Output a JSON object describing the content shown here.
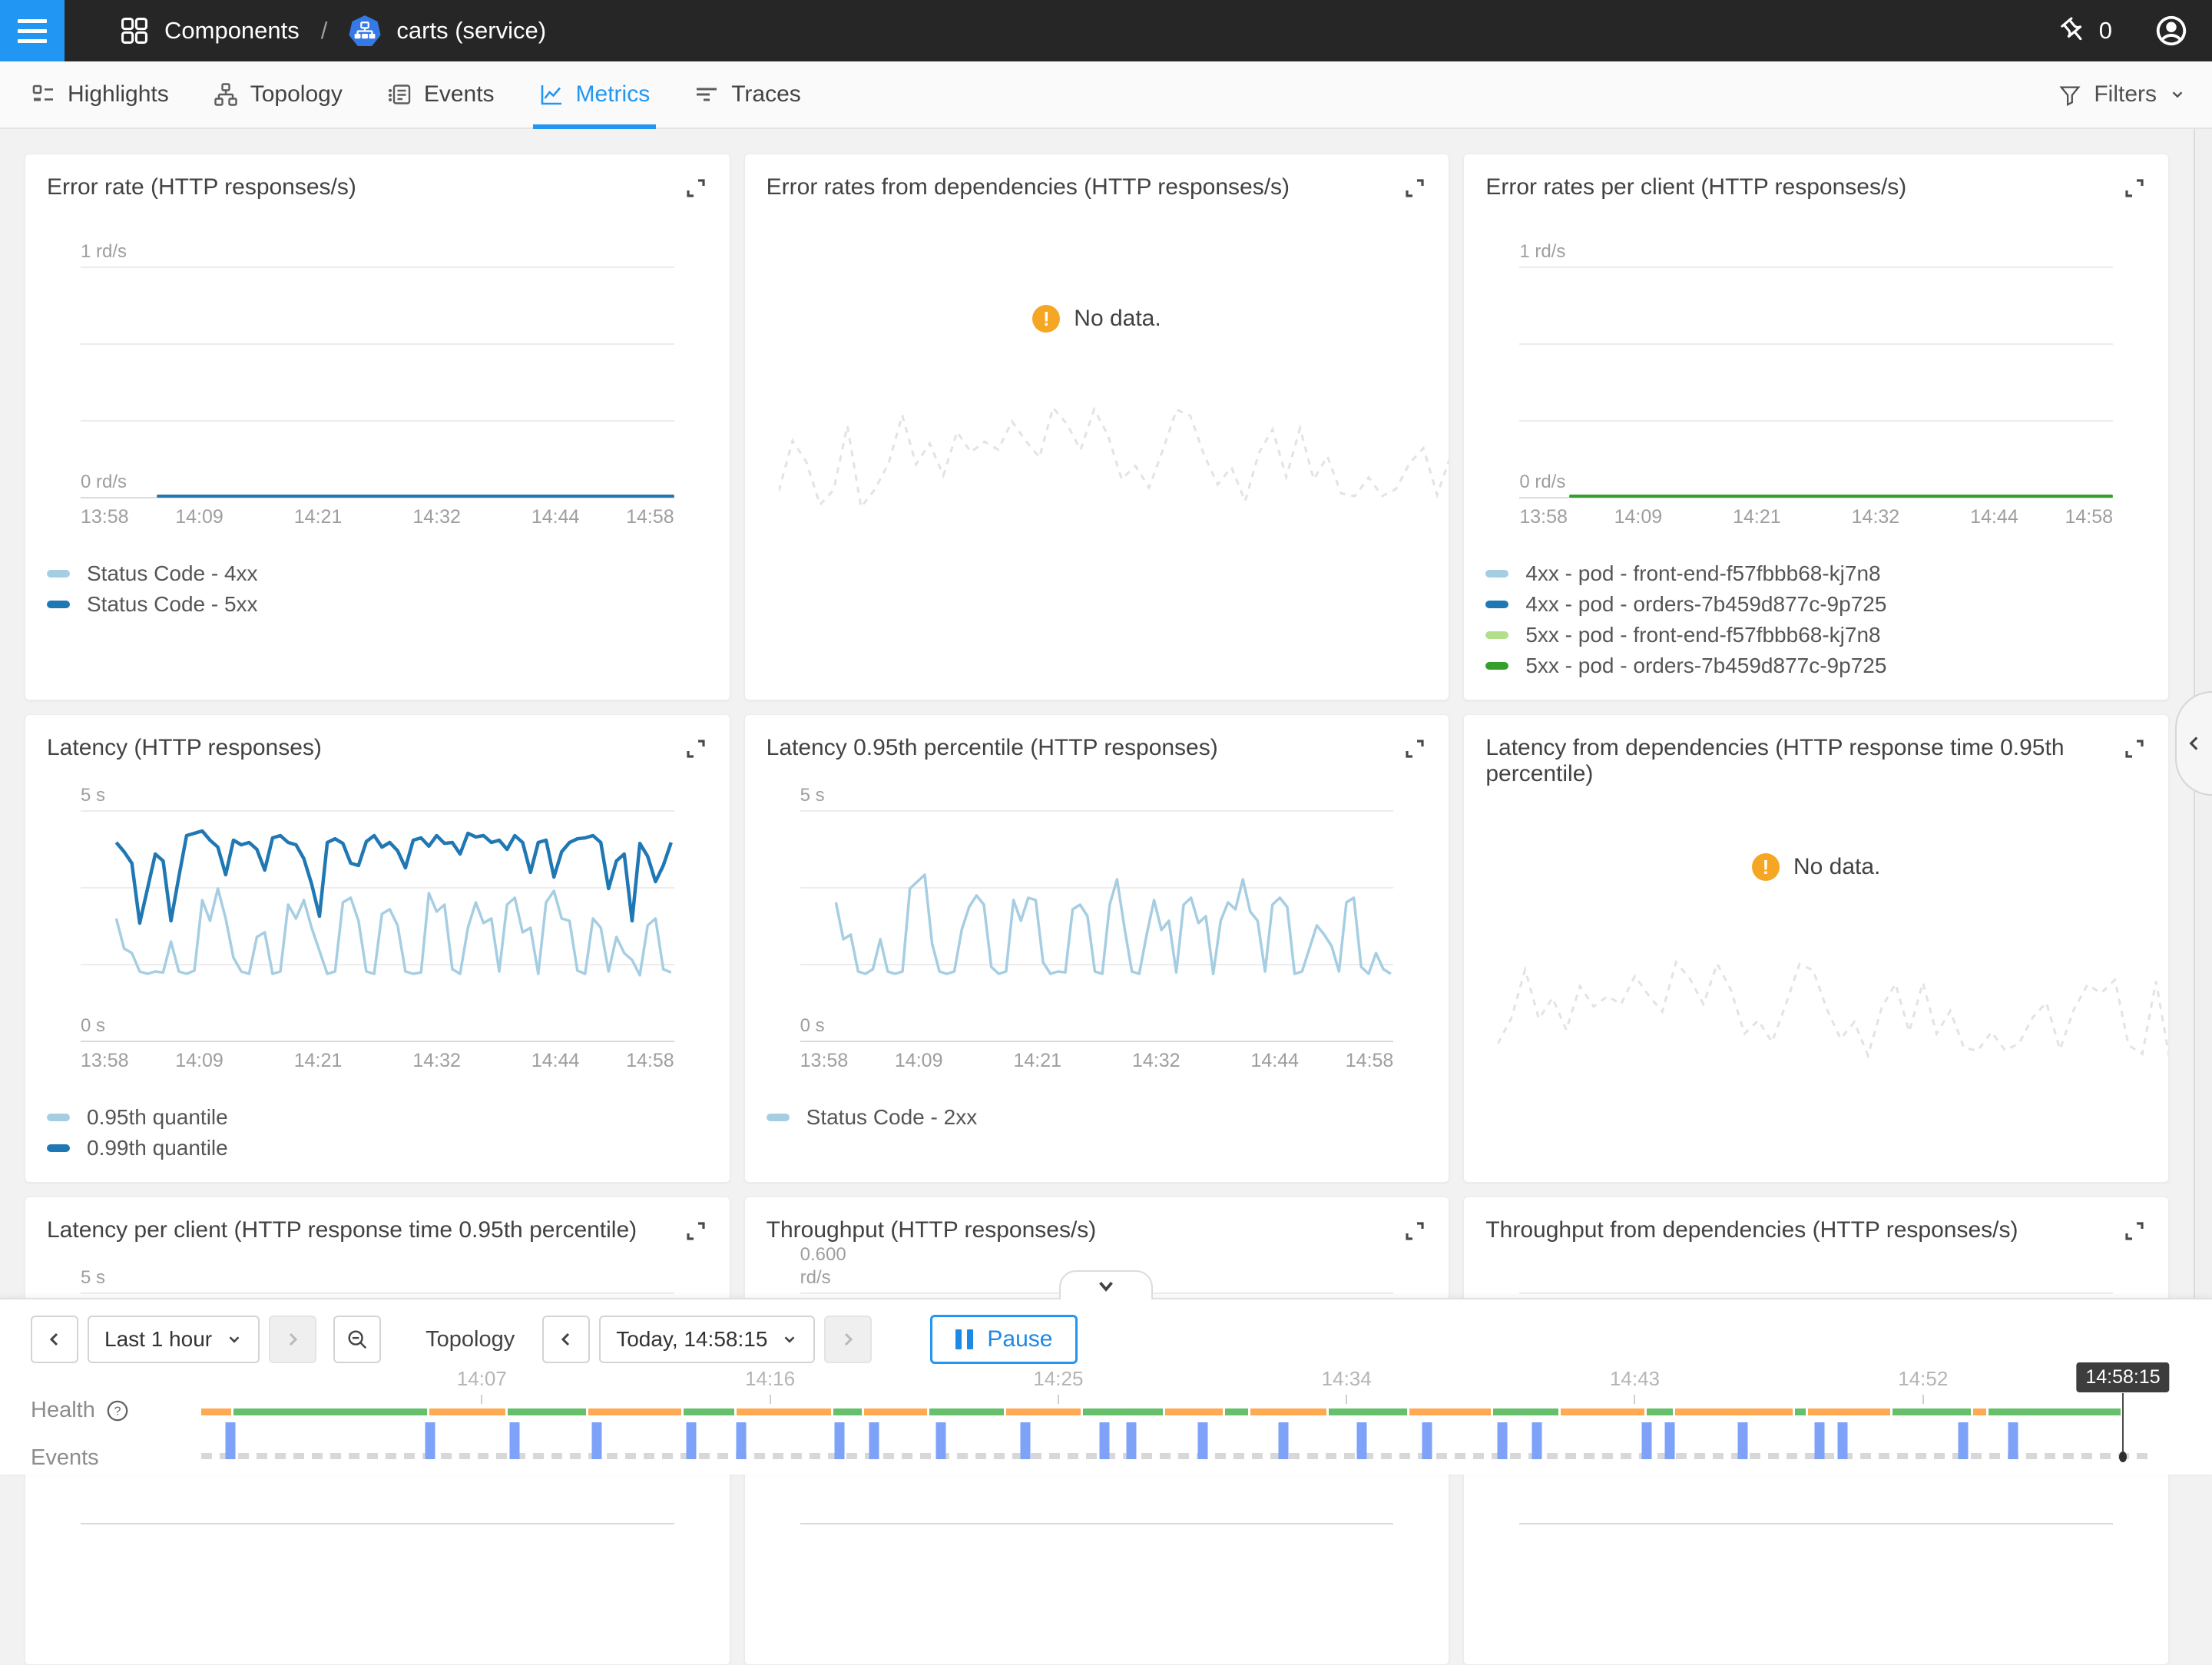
{
  "topbar": {
    "breadcrumb": {
      "section": "Components",
      "separator": "/",
      "entity": "carts (service)"
    },
    "pin_count": "0"
  },
  "tabs": [
    {
      "label": "Highlights"
    },
    {
      "label": "Topology"
    },
    {
      "label": "Events"
    },
    {
      "label": "Metrics",
      "active": true
    },
    {
      "label": "Traces"
    }
  ],
  "filters": {
    "label": "Filters"
  },
  "palette": {
    "accent_blue": "#2196f3",
    "light_blue": "#a6cee3",
    "dark_blue": "#1f78b4",
    "light_green": "#b2df8a",
    "dark_green": "#33a02c",
    "health_green": "#66bf6a",
    "health_orange": "#ffa952",
    "event_blue": "#7da2f7",
    "nodata_orange": "#f5a623"
  },
  "chart_data": [
    {
      "type": "line",
      "title": "Error rate (HTTP responses/s)",
      "y_top": "1 rd/s",
      "y_bottom": "0 rd/s",
      "ylim": [
        0,
        1
      ],
      "x_ticks": [
        "13:58",
        "14:09",
        "14:21",
        "14:32",
        "14:44",
        "14:58"
      ],
      "flat": {
        "value": 0,
        "color": "#1f78b4",
        "start_pct": 11.5
      },
      "legend": [
        {
          "label": "Status Code - 4xx",
          "color": "#a6cee3"
        },
        {
          "label": "Status Code - 5xx",
          "color": "#1f78b4"
        }
      ]
    },
    {
      "type": "nodata",
      "title": "Error rates from dependencies (HTTP responses/s)",
      "no_data_label": "No data."
    },
    {
      "type": "line",
      "title": "Error rates per client (HTTP responses/s)",
      "y_top": "1 rd/s",
      "y_bottom": "0 rd/s",
      "ylim": [
        0,
        1
      ],
      "x_ticks": [
        "13:58",
        "14:09",
        "14:21",
        "14:32",
        "14:44",
        "14:58"
      ],
      "flat": {
        "value": 0,
        "color": "#33a02c",
        "start_pct": 7.5
      },
      "legend": [
        {
          "label": "4xx - pod - front-end-f57fbbb68-kj7n8",
          "color": "#a6cee3"
        },
        {
          "label": "4xx - pod - orders-7b459d877c-9p725",
          "color": "#1f78b4"
        },
        {
          "label": "5xx - pod - front-end-f57fbbb68-kj7n8",
          "color": "#b2df8a"
        },
        {
          "label": "5xx - pod - orders-7b459d877c-9p725",
          "color": "#33a02c"
        }
      ]
    },
    {
      "type": "line",
      "title": "Latency (HTTP responses)",
      "y_top": "5 s",
      "y_bottom": "0 s",
      "ylim": [
        0,
        5
      ],
      "x_ticks": [
        "13:58",
        "14:09",
        "14:21",
        "14:32",
        "14:44",
        "14:58"
      ],
      "series": [
        {
          "name": "0.95th quantile",
          "color": "#a6cee3",
          "values": [
            2.65,
            2.0,
            1.9,
            1.5,
            1.45,
            1.5,
            1.48,
            2.15,
            1.5,
            1.45,
            1.52,
            3.05,
            2.6,
            3.3,
            2.65,
            1.8,
            1.5,
            1.45,
            2.25,
            2.35,
            1.45,
            1.5,
            2.95,
            2.65,
            3.05,
            2.45,
            1.95,
            1.45,
            1.5,
            3.0,
            3.1,
            2.6,
            1.5,
            1.45,
            2.75,
            2.85,
            2.5,
            1.5,
            1.45,
            1.48,
            3.2,
            2.8,
            2.95,
            1.55,
            1.45,
            2.45,
            3.0,
            2.55,
            2.65,
            1.5,
            2.95,
            3.1,
            2.35,
            2.45,
            1.45,
            3.0,
            3.25,
            2.65,
            2.6,
            1.52,
            1.45,
            2.65,
            2.45,
            1.5,
            2.25,
            1.9,
            1.75,
            1.42,
            2.5,
            2.65,
            1.55,
            1.48
          ]
        },
        {
          "name": "0.99th quantile",
          "color": "#1f78b4",
          "values": [
            4.3,
            4.1,
            3.85,
            2.55,
            3.3,
            4.05,
            3.9,
            2.6,
            3.55,
            4.45,
            4.5,
            4.55,
            4.35,
            4.2,
            3.6,
            4.35,
            4.25,
            4.3,
            4.15,
            3.7,
            4.4,
            4.45,
            4.3,
            4.25,
            3.95,
            3.4,
            2.7,
            4.3,
            4.38,
            4.28,
            3.85,
            3.8,
            4.32,
            4.45,
            4.2,
            4.3,
            4.12,
            3.75,
            4.35,
            4.4,
            4.22,
            4.45,
            4.28,
            4.3,
            4.05,
            4.5,
            4.42,
            4.45,
            4.3,
            4.35,
            4.15,
            4.45,
            4.3,
            3.65,
            4.3,
            4.35,
            3.55,
            4.1,
            4.3,
            4.38,
            4.4,
            4.45,
            4.3,
            3.3,
            3.9,
            4.05,
            2.6,
            4.28,
            4.0,
            3.45,
            3.8,
            4.3
          ]
        }
      ],
      "legend": [
        {
          "label": "0.95th quantile",
          "color": "#a6cee3"
        },
        {
          "label": "0.99th quantile",
          "color": "#1f78b4"
        }
      ]
    },
    {
      "type": "line",
      "title": "Latency 0.95th percentile (HTTP responses)",
      "y_top": "5 s",
      "y_bottom": "0 s",
      "ylim": [
        0,
        5
      ],
      "x_ticks": [
        "13:58",
        "14:09",
        "14:21",
        "14:32",
        "14:44",
        "14:58"
      ],
      "series": [
        {
          "name": "Status Code - 2xx",
          "color": "#a6cee3",
          "values": [
            3.0,
            2.2,
            2.3,
            1.5,
            1.45,
            1.55,
            2.2,
            1.5,
            1.45,
            1.5,
            3.3,
            3.45,
            3.6,
            2.1,
            1.5,
            1.45,
            1.5,
            2.4,
            2.9,
            3.15,
            2.95,
            1.6,
            1.45,
            1.5,
            3.05,
            2.6,
            3.1,
            3.05,
            1.7,
            1.45,
            1.5,
            1.48,
            2.85,
            2.95,
            2.7,
            1.5,
            1.45,
            2.95,
            3.5,
            2.45,
            1.5,
            1.45,
            2.3,
            3.05,
            2.4,
            2.6,
            1.48,
            2.95,
            3.1,
            2.55,
            2.7,
            1.45,
            2.6,
            3.0,
            2.85,
            3.5,
            2.8,
            2.6,
            1.5,
            2.95,
            3.1,
            2.9,
            1.45,
            1.5,
            2.0,
            2.5,
            2.3,
            2.05,
            1.5,
            3.0,
            3.1,
            1.6,
            1.45,
            1.9,
            1.55,
            1.45
          ]
        }
      ],
      "legend": [
        {
          "label": "Status Code - 2xx",
          "color": "#a6cee3"
        }
      ]
    },
    {
      "type": "nodata",
      "title": "Latency from dependencies (HTTP response time 0.95th percentile)",
      "no_data_label": "No data."
    },
    {
      "type": "clipped",
      "title": "Latency per client (HTTP response time 0.95th percentile)",
      "y_top": "5 s"
    },
    {
      "type": "clipped",
      "title": "Throughput (HTTP responses/s)",
      "y_top": "0.600",
      "y_top2": "rd/s"
    },
    {
      "type": "clipped",
      "title": "Throughput from dependencies (HTTP responses/s)"
    }
  ],
  "timebar": {
    "range": "Last 1 hour",
    "topology_label": "Topology",
    "datetime": "Today, 14:58:15",
    "pause_label": "Pause"
  },
  "timeline": {
    "health_label": "Health",
    "events_label": "Events",
    "cursor_time": "14:58:15",
    "ticks": [
      {
        "label": "14:07",
        "pct": 14.6
      },
      {
        "label": "14:16",
        "pct": 29.6
      },
      {
        "label": "14:25",
        "pct": 44.6
      },
      {
        "label": "14:34",
        "pct": 59.6
      },
      {
        "label": "14:43",
        "pct": 74.6
      },
      {
        "label": "14:52",
        "pct": 89.6
      }
    ],
    "health_segments": [
      {
        "c": "orange",
        "w": 1.6
      },
      {
        "c": "green",
        "w": 10.4
      },
      {
        "c": "orange",
        "w": 4.1
      },
      {
        "c": "green",
        "w": 4.2
      },
      {
        "c": "orange",
        "w": 5.0
      },
      {
        "c": "green",
        "w": 2.7
      },
      {
        "c": "orange",
        "w": 5.1
      },
      {
        "c": "green",
        "w": 1.5
      },
      {
        "c": "orange",
        "w": 3.4
      },
      {
        "c": "green",
        "w": 4.0
      },
      {
        "c": "orange",
        "w": 4.0
      },
      {
        "c": "green",
        "w": 4.3
      },
      {
        "c": "orange",
        "w": 3.1
      },
      {
        "c": "green",
        "w": 1.2
      },
      {
        "c": "orange",
        "w": 4.1
      },
      {
        "c": "green",
        "w": 4.2
      },
      {
        "c": "orange",
        "w": 4.4
      },
      {
        "c": "green",
        "w": 3.5
      },
      {
        "c": "orange",
        "w": 4.5
      },
      {
        "c": "green",
        "w": 1.4
      },
      {
        "c": "orange",
        "w": 6.3
      },
      {
        "c": "green",
        "w": 0.6
      },
      {
        "c": "orange",
        "w": 4.4
      },
      {
        "c": "green",
        "w": 4.2
      },
      {
        "c": "orange",
        "w": 0.7
      },
      {
        "c": "green",
        "w": 7.1
      }
    ],
    "event_bars_pct": [
      1.5,
      11.9,
      16.3,
      20.6,
      25.5,
      28.1,
      33.2,
      35.0,
      38.5,
      42.9,
      47.0,
      48.4,
      52.1,
      56.3,
      60.4,
      63.8,
      67.7,
      69.5,
      75.2,
      76.4,
      80.2,
      84.2,
      85.4,
      91.7,
      94.3
    ]
  }
}
